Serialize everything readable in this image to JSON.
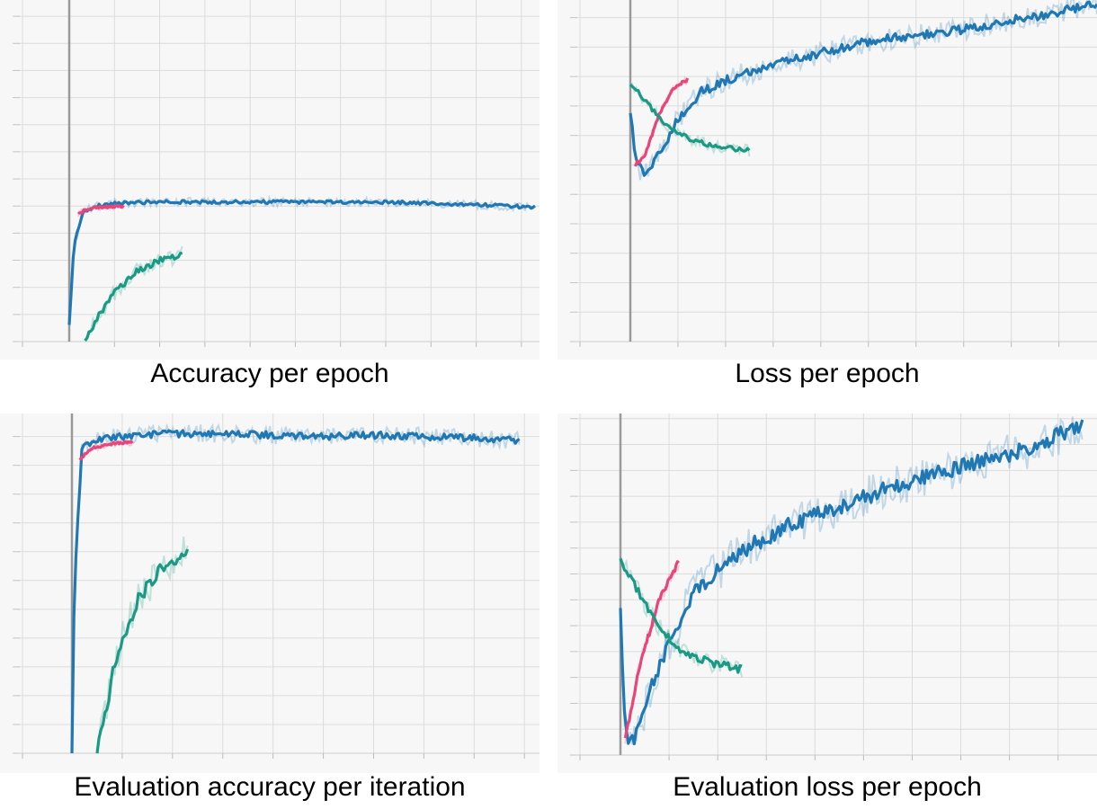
{
  "colors": {
    "blue": "#1f77b4",
    "pink": "#e8457a",
    "green": "#1a9a84",
    "plot_bg": "#f7f7f7",
    "grid": "#dcdcdc",
    "axis": "#9a9a9a"
  },
  "chart_data": [
    {
      "type": "line",
      "title": "Accuracy per epoch",
      "xlabel": "",
      "ylabel": "",
      "xlim": [
        -1,
        10.4
      ],
      "ylim": [
        0,
        12.6
      ],
      "x_ticks": [
        -1,
        0,
        1,
        2,
        3,
        4,
        5,
        6,
        7,
        8,
        9,
        10
      ],
      "y_ticks": [
        0,
        1,
        2,
        3,
        4,
        5,
        6,
        7,
        8,
        9,
        10,
        11,
        12
      ],
      "grid": true,
      "series": [
        {
          "color": "blue",
          "noise": 0.06,
          "x": [
            0,
            0.1,
            0.3,
            0.6,
            1,
            2,
            4,
            6,
            7,
            8,
            9,
            10.3
          ],
          "y": [
            0.6,
            3.5,
            4.8,
            5.0,
            5.1,
            5.15,
            5.15,
            5.15,
            5.15,
            5.1,
            5.05,
            4.95
          ]
        },
        {
          "color": "pink",
          "noise": 0.04,
          "x": [
            0.2,
            0.4,
            0.7,
            1.2
          ],
          "y": [
            4.7,
            4.9,
            4.95,
            5.0
          ]
        },
        {
          "color": "green",
          "noise": 0.12,
          "x": [
            0.35,
            0.6,
            1,
            1.5,
            2,
            2.5
          ],
          "y": [
            0,
            0.8,
            1.8,
            2.6,
            3.0,
            3.2
          ]
        }
      ]
    },
    {
      "type": "line",
      "title": "Loss per epoch",
      "xlabel": "",
      "ylabel": "",
      "xlim": [
        -1,
        9.8
      ],
      "ylim": [
        0,
        11.6
      ],
      "x_ticks": [
        -1,
        0,
        1,
        2,
        3,
        4,
        5,
        6,
        7,
        8,
        9
      ],
      "y_ticks": [
        0,
        1,
        2,
        3,
        4,
        5,
        6,
        7,
        8,
        9,
        10,
        11
      ],
      "grid": true,
      "series": [
        {
          "color": "blue",
          "noise": 0.15,
          "x": [
            0,
            0.1,
            0.3,
            0.7,
            1,
            1.5,
            2.2,
            3,
            4,
            5,
            6,
            7,
            8,
            9,
            9.8
          ],
          "y": [
            7.9,
            6.2,
            5.6,
            6.6,
            7.6,
            8.5,
            9.0,
            9.4,
            9.8,
            10.2,
            10.4,
            10.6,
            10.9,
            11.2,
            11.5
          ]
        },
        {
          "color": "pink",
          "noise": 0.05,
          "x": [
            0.1,
            0.3,
            0.6,
            0.9,
            1.2
          ],
          "y": [
            6.0,
            6.3,
            7.7,
            8.6,
            8.9
          ]
        },
        {
          "color": "green",
          "noise": 0.08,
          "x": [
            0,
            0.4,
            0.8,
            1.2,
            1.8,
            2.5
          ],
          "y": [
            8.8,
            8.0,
            7.3,
            6.9,
            6.6,
            6.5
          ]
        }
      ]
    },
    {
      "type": "line",
      "title": "Evaluation accuracy per iteration",
      "xlabel": "",
      "ylabel": "",
      "xlim": [
        -1,
        9.3
      ],
      "ylim": [
        0,
        11.8
      ],
      "x_ticks": [
        -1,
        0,
        1,
        2,
        3,
        4,
        5,
        6,
        7,
        8,
        9
      ],
      "y_ticks": [
        0,
        1,
        2,
        3,
        4,
        5,
        6,
        7,
        8,
        9,
        10,
        11
      ],
      "grid": true,
      "series": [
        {
          "color": "blue",
          "noise": 0.12,
          "x": [
            0,
            0.05,
            0.2,
            0.5,
            1,
            2,
            3,
            4,
            5,
            6,
            7,
            8,
            8.9
          ],
          "y": [
            0,
            6.0,
            10.6,
            10.9,
            11.0,
            11.1,
            11.1,
            11.05,
            11.0,
            11.05,
            11.0,
            10.95,
            10.85
          ]
        },
        {
          "color": "pink",
          "noise": 0.04,
          "x": [
            0.15,
            0.4,
            0.8,
            1.2
          ],
          "y": [
            10.2,
            10.6,
            10.75,
            10.8
          ]
        },
        {
          "color": "green",
          "noise": 0.25,
          "x": [
            0.5,
            0.9,
            1.3,
            1.8,
            2.3
          ],
          "y": [
            0,
            3.5,
            5.3,
            6.5,
            7.1
          ]
        }
      ]
    },
    {
      "type": "line",
      "title": "Evaluation loss per epoch",
      "xlabel": "",
      "ylabel": "",
      "xlim": [
        -1.2,
        9.8
      ],
      "ylim": [
        0,
        13.2
      ],
      "x_ticks": [
        -1,
        0,
        1,
        2,
        3,
        4,
        5,
        6,
        7,
        8,
        9
      ],
      "y_ticks": [
        0,
        1,
        2,
        3,
        4,
        5,
        6,
        7,
        8,
        9,
        10,
        11,
        12,
        13
      ],
      "grid": true,
      "series": [
        {
          "color": "blue",
          "noise": 0.3,
          "x": [
            0,
            0.1,
            0.3,
            0.8,
            1.5,
            2.5,
            3.5,
            4.5,
            5.5,
            6.5,
            7.5,
            8.5,
            9.5
          ],
          "y": [
            5.5,
            0.8,
            0.6,
            3.5,
            6.3,
            7.9,
            8.9,
            9.6,
            10.3,
            10.9,
            11.4,
            11.9,
            12.8
          ]
        },
        {
          "color": "pink",
          "noise": 0.1,
          "x": [
            0.1,
            0.4,
            0.8,
            1.2
          ],
          "y": [
            0.6,
            3.5,
            6.0,
            7.5
          ]
        },
        {
          "color": "green",
          "noise": 0.15,
          "x": [
            0,
            0.4,
            0.8,
            1.2,
            1.8,
            2.5
          ],
          "y": [
            7.5,
            6.2,
            4.9,
            4.1,
            3.6,
            3.3
          ]
        }
      ]
    }
  ]
}
